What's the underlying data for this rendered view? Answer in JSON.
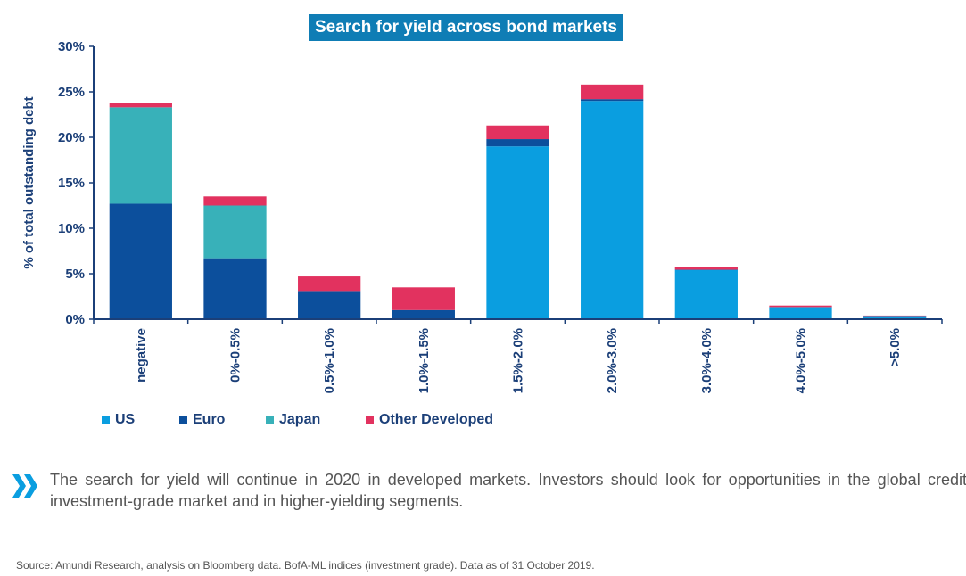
{
  "chart_data": {
    "type": "bar",
    "stacked": true,
    "title": "Search for yield across bond markets",
    "ylabel": "% of total outstanding debt",
    "xlabel": "",
    "ylim": [
      0,
      30
    ],
    "yticks": [
      0,
      5,
      10,
      15,
      20,
      25,
      30
    ],
    "ytick_labels": [
      "0%",
      "5%",
      "10%",
      "15%",
      "20%",
      "25%",
      "30%"
    ],
    "grid": false,
    "legend_position": "bottom-left",
    "categories": [
      "negative",
      "0%-0.5%",
      "0.5%-1.0%",
      "1.0%-1.5%",
      "1.5%-2.0%",
      "2.0%-3.0%",
      "3.0%-4.0%",
      "4.0%-5.0%",
      ">5.0%"
    ],
    "series": [
      {
        "name": "US",
        "color": "#0a9ee0",
        "values": [
          0,
          0,
          0,
          0,
          19.0,
          24.0,
          5.4,
          1.3,
          0.35
        ]
      },
      {
        "name": "Euro",
        "color": "#0c4f9c",
        "values": [
          12.7,
          6.7,
          3.1,
          1.0,
          0.8,
          0.2,
          0.05,
          0.05,
          0.0
        ]
      },
      {
        "name": "Japan",
        "color": "#38b1b9",
        "values": [
          10.6,
          5.8,
          0.0,
          0.0,
          0.0,
          0.0,
          0.0,
          0.0,
          0.0
        ]
      },
      {
        "name": "Other Developed",
        "color": "#e2325f",
        "values": [
          0.5,
          1.0,
          1.6,
          2.5,
          1.5,
          1.6,
          0.3,
          0.15,
          0.05
        ]
      }
    ]
  },
  "callout": {
    "text": "The search for yield will continue in 2020 in developed markets. Investors should look for opportunities in the global credit investment-grade market and in higher-yielding segments.",
    "chevron_color": "#0a9ee0"
  },
  "source": "Source: Amundi Research, analysis on Bloomberg data. BofA-ML indices (investment grade). Data as of  31 October 2019."
}
